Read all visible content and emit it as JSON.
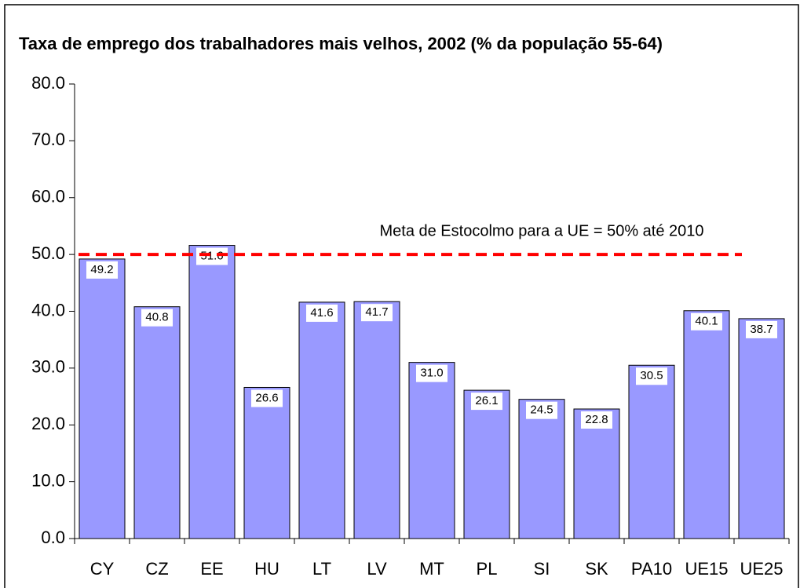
{
  "chart_data": {
    "type": "bar",
    "title": "Taxa de emprego dos trabalhadores mais velhos, 2002 (% da população 55-64)",
    "categories": [
      "CY",
      "CZ",
      "EE",
      "HU",
      "LT",
      "LV",
      "MT",
      "PL",
      "SI",
      "SK",
      "PA10",
      "UE15",
      "UE25"
    ],
    "values": [
      49.2,
      40.8,
      51.6,
      26.6,
      41.6,
      41.7,
      31.0,
      26.1,
      24.5,
      22.8,
      30.5,
      40.1,
      38.7
    ],
    "value_labels": [
      "49.2",
      "40.8",
      "51.6",
      "26.6",
      "41.6",
      "41.7",
      "31.0",
      "26.1",
      "24.5",
      "22.8",
      "30.5",
      "40.1",
      "38.7"
    ],
    "color": "#9999ff",
    "ylim": [
      0,
      80
    ],
    "yticks": [
      {
        "value": 0,
        "label": "0.0"
      },
      {
        "value": 10,
        "label": "10.0"
      },
      {
        "value": 20,
        "label": "20.0"
      },
      {
        "value": 30,
        "label": "30.0"
      },
      {
        "value": 40,
        "label": "40.0"
      },
      {
        "value": 50,
        "label": "50.0"
      },
      {
        "value": 60,
        "label": "60.0"
      },
      {
        "value": 70,
        "label": "70.0"
      },
      {
        "value": 80,
        "label": "80.0"
      }
    ],
    "reference_line": {
      "value": 50,
      "label": "Meta de Estocolmo para a UE = 50% até 2010",
      "color": "#ff0000"
    }
  }
}
